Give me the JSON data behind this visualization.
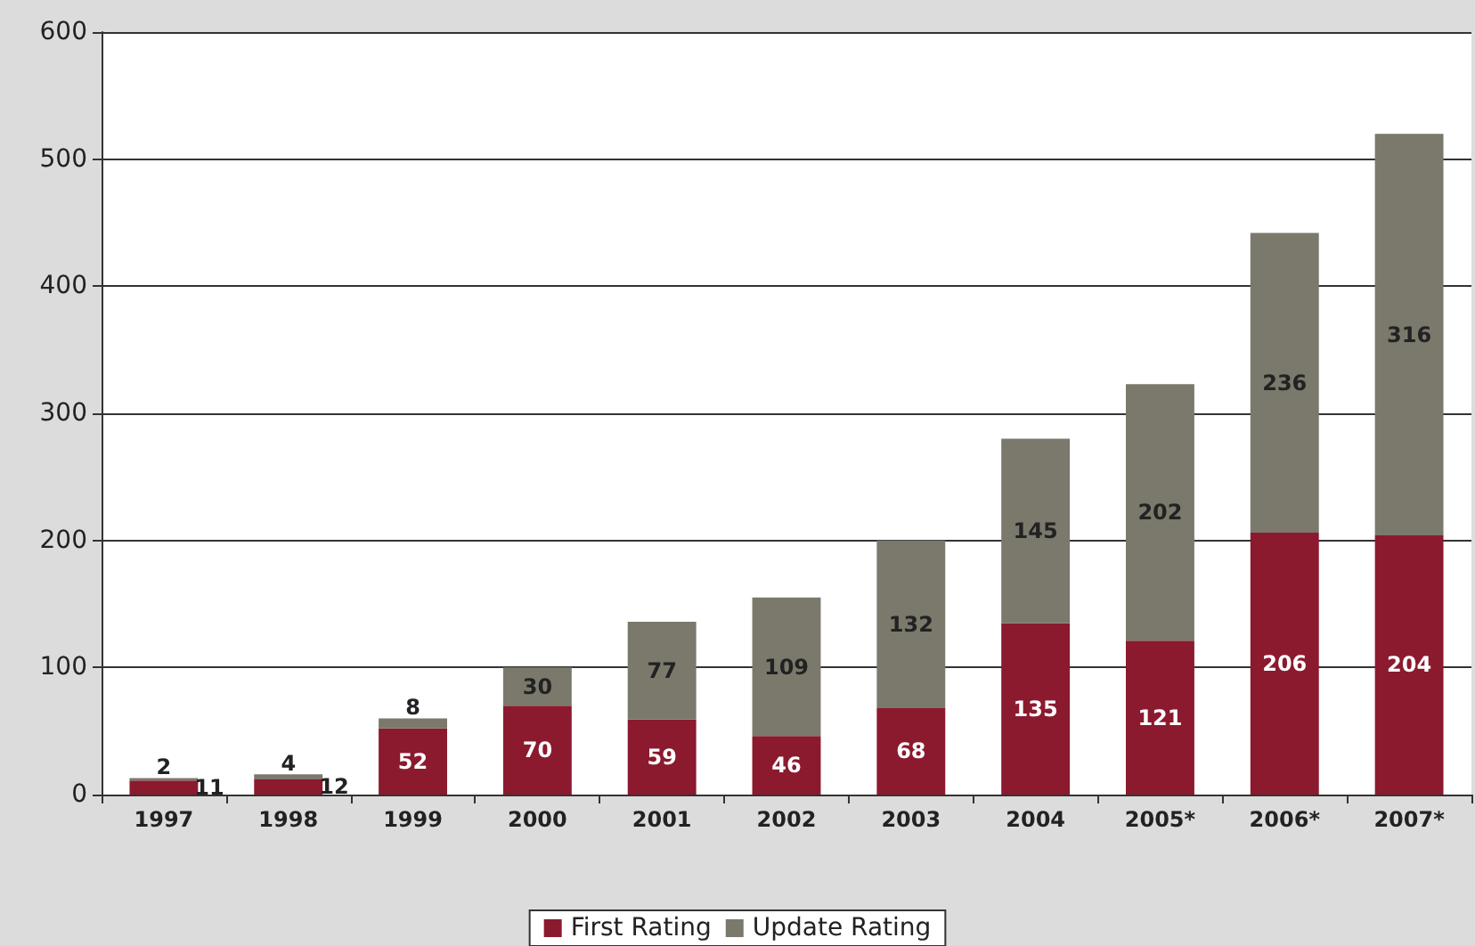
{
  "chart_data": {
    "type": "bar",
    "stacked": true,
    "categories": [
      "1997",
      "1998",
      "1999",
      "2000",
      "2001",
      "2002",
      "2003",
      "2004",
      "2005*",
      "2006*",
      "2007*"
    ],
    "series": [
      {
        "name": "First Rating",
        "color": "#8b1a2e",
        "values": [
          11,
          12,
          52,
          70,
          59,
          46,
          68,
          135,
          121,
          206,
          204
        ]
      },
      {
        "name": "Update Rating",
        "color": "#7b796c",
        "values": [
          2,
          4,
          8,
          30,
          77,
          109,
          132,
          145,
          202,
          236,
          316
        ]
      }
    ],
    "ylim": [
      0,
      600
    ],
    "yticks": [
      0,
      100,
      200,
      300,
      400,
      500,
      600
    ],
    "grid": "y",
    "legend": "bottom",
    "data_labels": true
  }
}
